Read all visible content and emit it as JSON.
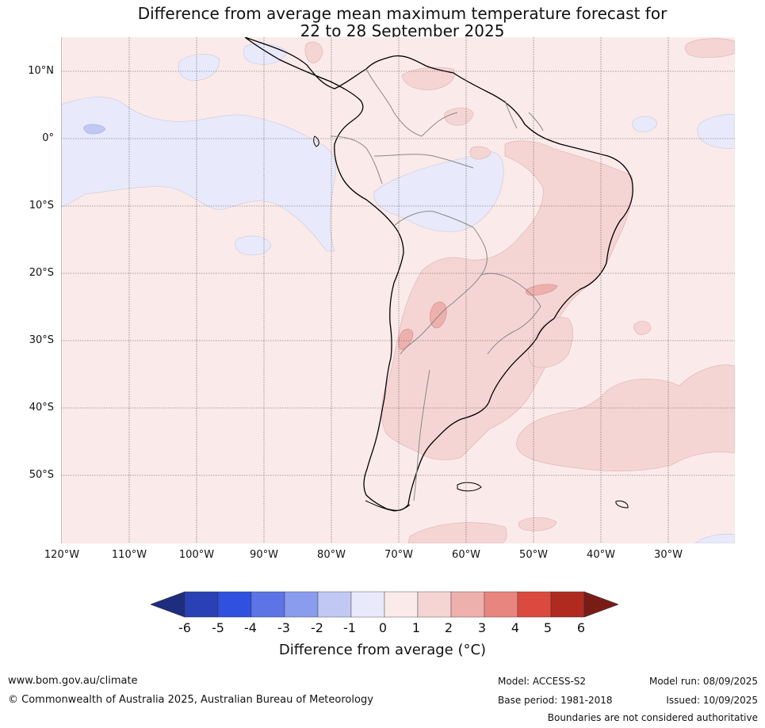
{
  "title": {
    "line1": "Difference from average mean maximum temperature forecast for",
    "line2": "22 to 28 September 2025"
  },
  "lat_labels": [
    "10°N",
    "0°",
    "10°S",
    "20°S",
    "30°S",
    "40°S",
    "50°S"
  ],
  "lon_labels": [
    "120°W",
    "110°W",
    "100°W",
    "90°W",
    "80°W",
    "70°W",
    "60°W",
    "50°W",
    "40°W",
    "30°W"
  ],
  "colorbar": {
    "ticks": [
      "-6",
      "-5",
      "-4",
      "-3",
      "-2",
      "-1",
      "0",
      "1",
      "2",
      "3",
      "4",
      "5",
      "6"
    ],
    "colors": [
      "#1f2d80",
      "#2a40b5",
      "#3050e0",
      "#5c74e6",
      "#8a9cee",
      "#c2c8f4",
      "#e8eafb",
      "#fbeaea",
      "#f5d5d4",
      "#eeb0ac",
      "#e8857f",
      "#db4a3e",
      "#b02a20",
      "#7a1c16"
    ],
    "label": "Difference from average (°C)"
  },
  "footer": {
    "website": "www.bom.gov.au/climate",
    "copyright": "© Commonwealth of Australia 2025, Australian Bureau of Meteorology",
    "model": "Model: ACCESS-S2",
    "base_period": "Base period: 1981-2018",
    "model_run": "Model run: 08/09/2025",
    "issued": "Issued: 10/09/2025",
    "disclaimer": "Boundaries are not considered authoritative"
  }
}
